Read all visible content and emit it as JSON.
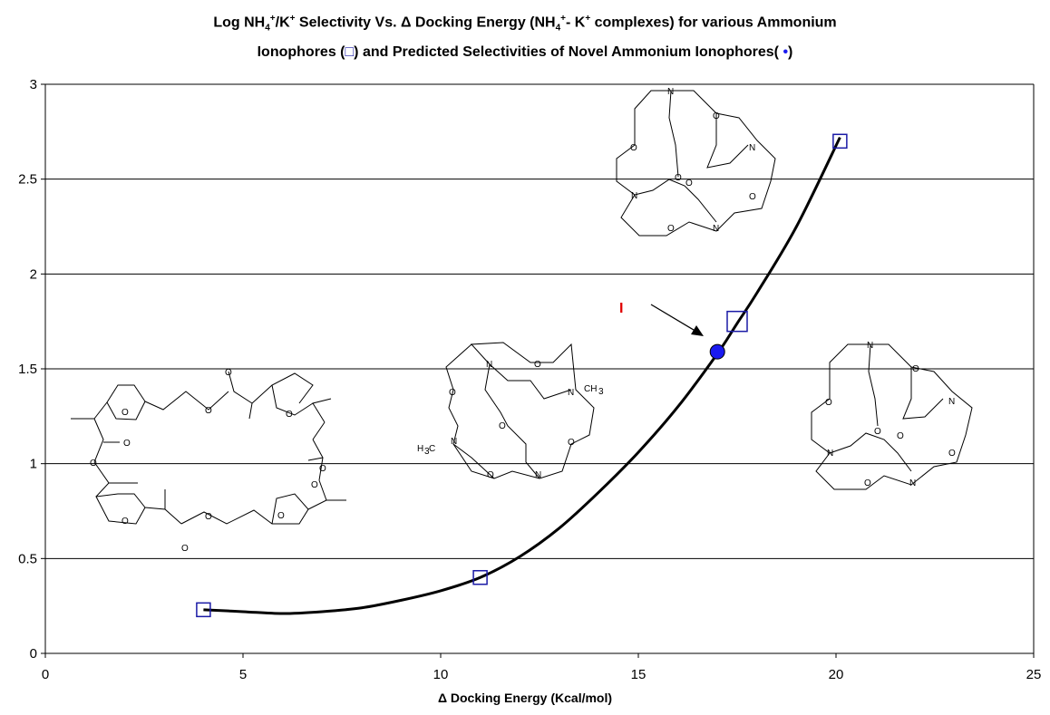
{
  "chart_data": {
    "type": "scatter",
    "title": {
      "line1": {
        "a": "Log NH",
        "b": "4",
        "c": "+",
        "d": "/K",
        "e": "+",
        "f": " Selectivity  Vs. Δ Docking Energy (NH",
        "g": "4",
        "h": "+",
        "i": "- K",
        "j": "+",
        "k": " complexes) for various Ammonium"
      },
      "line2": {
        "a": "Ionophores (",
        "b": "□",
        "c": ") and Predicted Selectivities of Novel Ammonium Ionophores( ",
        "d": "•",
        "e": ")"
      }
    },
    "xlabel": "Δ Docking Energy (Kcal/mol)",
    "ylabel": "",
    "xlim": [
      0,
      25
    ],
    "ylim": [
      0,
      3
    ],
    "x_ticks": [
      0,
      5,
      10,
      15,
      20,
      25
    ],
    "y_ticks": [
      0,
      0.5,
      1,
      1.5,
      2,
      2.5,
      3
    ],
    "x_tick_labels": [
      "0",
      "5",
      "10",
      "15",
      "20",
      "25"
    ],
    "y_tick_labels": [
      "0",
      "0.5",
      "1",
      "1.5",
      "2",
      "2.5",
      "3"
    ],
    "grid": "horizontal",
    "legend": "none",
    "series": [
      {
        "marker": "open-square",
        "color": "#1a1aa6",
        "points": [
          {
            "x": 4.0,
            "y": 0.23
          },
          {
            "x": 11.0,
            "y": 0.4
          },
          {
            "x": 17.5,
            "y": 1.75
          },
          {
            "x": 20.1,
            "y": 2.7
          }
        ]
      },
      {
        "marker": "filled-circle",
        "color": "#1a1af0",
        "points": [
          {
            "x": 17.0,
            "y": 1.59
          }
        ]
      }
    ],
    "trendline": {
      "type": "polynomial",
      "color": "#000000",
      "x": [
        4.0,
        5.0,
        6.0,
        7.0,
        8.0,
        9.0,
        10.0,
        11.0,
        12.0,
        13.0,
        14.0,
        15.0,
        16.0,
        17.0,
        17.5,
        18.0,
        19.0,
        20.1
      ],
      "y": [
        0.23,
        0.22,
        0.21,
        0.22,
        0.24,
        0.28,
        0.33,
        0.4,
        0.51,
        0.66,
        0.85,
        1.06,
        1.3,
        1.58,
        1.74,
        1.9,
        2.25,
        2.72
      ]
    },
    "annotation": {
      "label": "I",
      "points_to": {
        "x": 17.0,
        "y": 1.59
      },
      "color": "#e00000"
    },
    "molecule_atoms": {
      "oxygen": "O",
      "nitrogen": "N",
      "methyl_1": "CH",
      "methyl_sub": "3",
      "methyl_2_a": "H",
      "methyl_2_b": "3",
      "methyl_2_c": "C"
    }
  }
}
